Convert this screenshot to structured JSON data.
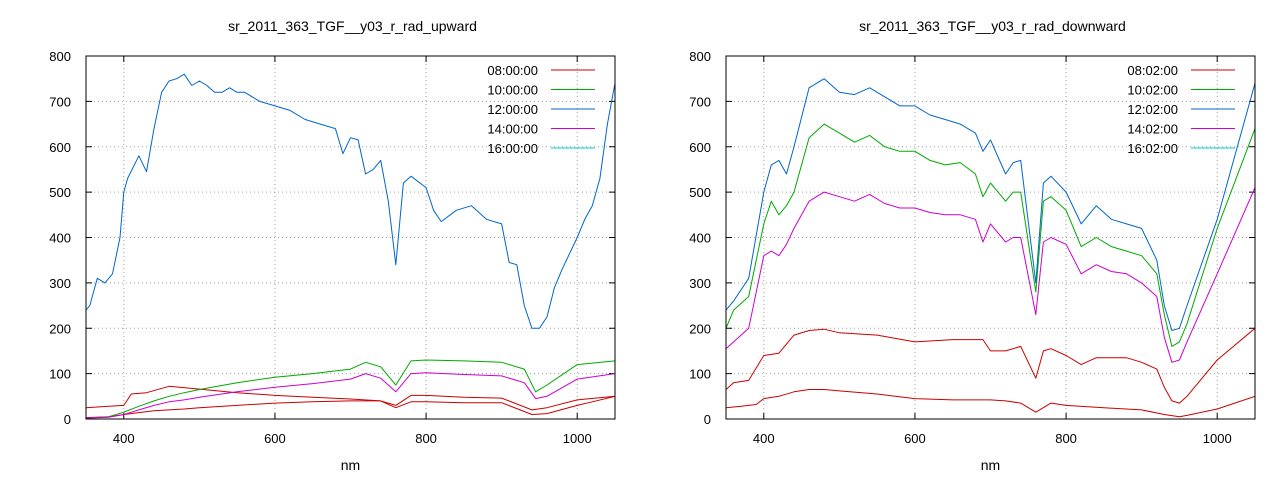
{
  "chart_data": [
    {
      "type": "line",
      "title": "sr_2011_363_TGF__y03_r_rad_upward",
      "xlabel": "nm",
      "ylabel": "",
      "xlim": [
        350,
        1050
      ],
      "ylim": [
        0,
        800
      ],
      "xticks": [
        400,
        600,
        800,
        1000
      ],
      "yticks": [
        0,
        100,
        200,
        300,
        400,
        500,
        600,
        700,
        800
      ],
      "grid": true,
      "legend_position": "top-right",
      "series": [
        {
          "name": "08:00:00",
          "color": "#cc0000",
          "x": [
            350,
            380,
            400,
            420,
            440,
            460,
            480,
            500,
            550,
            600,
            650,
            700,
            740,
            760,
            780,
            800,
            850,
            900,
            940,
            960,
            1000,
            1020,
            1050
          ],
          "y": [
            3,
            5,
            10,
            14,
            18,
            20,
            22,
            25,
            30,
            35,
            38,
            40,
            40,
            25,
            38,
            38,
            36,
            36,
            10,
            12,
            30,
            38,
            50
          ]
        },
        {
          "name": "08:00:00",
          "color": "#cc0000",
          "x": [
            350,
            380,
            400,
            410,
            430,
            460,
            500,
            550,
            600,
            650,
            700,
            740,
            760,
            780,
            800,
            850,
            900,
            940,
            960,
            1000,
            1050
          ],
          "y": [
            25,
            28,
            30,
            55,
            58,
            72,
            66,
            58,
            52,
            48,
            44,
            40,
            30,
            52,
            52,
            48,
            46,
            20,
            25,
            42,
            50
          ]
        },
        {
          "name": "10:00:00",
          "color": "#00aa00",
          "x": [
            350,
            380,
            400,
            420,
            440,
            460,
            480,
            500,
            550,
            600,
            650,
            700,
            720,
            740,
            760,
            780,
            800,
            850,
            900,
            930,
            945,
            960,
            1000,
            1050
          ],
          "y": [
            2,
            5,
            15,
            28,
            40,
            50,
            58,
            65,
            80,
            92,
            100,
            110,
            125,
            115,
            75,
            128,
            130,
            128,
            125,
            110,
            60,
            75,
            120,
            128
          ]
        },
        {
          "name": "12:00:00",
          "color": "#0066cc",
          "x": [
            350,
            355,
            365,
            375,
            385,
            395,
            400,
            405,
            420,
            430,
            440,
            450,
            460,
            470,
            480,
            490,
            500,
            510,
            520,
            530,
            540,
            550,
            560,
            580,
            600,
            620,
            640,
            660,
            680,
            690,
            700,
            710,
            720,
            730,
            740,
            750,
            760,
            770,
            780,
            800,
            810,
            820,
            840,
            860,
            880,
            900,
            910,
            920,
            930,
            940,
            950,
            960,
            970,
            980,
            1000,
            1010,
            1020,
            1030,
            1040,
            1050
          ],
          "y": [
            240,
            250,
            310,
            300,
            320,
            400,
            500,
            530,
            580,
            545,
            640,
            720,
            745,
            750,
            760,
            735,
            745,
            735,
            720,
            720,
            730,
            720,
            720,
            700,
            690,
            680,
            660,
            650,
            640,
            585,
            620,
            615,
            540,
            550,
            570,
            480,
            340,
            520,
            535,
            510,
            460,
            435,
            460,
            470,
            440,
            430,
            345,
            340,
            250,
            200,
            200,
            225,
            290,
            330,
            400,
            440,
            470,
            530,
            650,
            740
          ]
        },
        {
          "name": "14:00:00",
          "color": "#cc00cc",
          "x": [
            350,
            380,
            400,
            420,
            440,
            460,
            480,
            500,
            550,
            600,
            650,
            700,
            720,
            740,
            760,
            780,
            800,
            850,
            900,
            930,
            945,
            960,
            1000,
            1050
          ],
          "y": [
            2,
            4,
            10,
            20,
            30,
            38,
            42,
            48,
            60,
            70,
            78,
            88,
            100,
            90,
            60,
            100,
            102,
            98,
            95,
            80,
            45,
            50,
            88,
            100
          ]
        },
        {
          "name": "16:00:00",
          "color": "#00cccc",
          "x": [
            350,
            1050
          ],
          "y": [
            0,
            0
          ]
        }
      ]
    },
    {
      "type": "line",
      "title": "sr_2011_363_TGF__y03_r_rad_downward",
      "xlabel": "nm",
      "ylabel": "",
      "xlim": [
        350,
        1050
      ],
      "ylim": [
        0,
        800
      ],
      "xticks": [
        400,
        600,
        800,
        1000
      ],
      "yticks": [
        0,
        100,
        200,
        300,
        400,
        500,
        600,
        700,
        800
      ],
      "grid": true,
      "legend_position": "top-right",
      "series": [
        {
          "name": "08:02:00",
          "color": "#cc0000",
          "x": [
            350,
            370,
            390,
            400,
            420,
            440,
            460,
            480,
            500,
            550,
            600,
            650,
            700,
            720,
            740,
            760,
            780,
            800,
            850,
            900,
            930,
            950,
            960,
            1000,
            1050
          ],
          "y": [
            25,
            28,
            32,
            45,
            50,
            60,
            65,
            65,
            62,
            55,
            45,
            42,
            42,
            40,
            35,
            15,
            35,
            30,
            25,
            20,
            10,
            5,
            8,
            22,
            50
          ]
        },
        {
          "name": "08:02:00",
          "color": "#cc0000",
          "x": [
            350,
            360,
            380,
            400,
            420,
            440,
            460,
            480,
            500,
            550,
            600,
            650,
            690,
            700,
            720,
            740,
            760,
            770,
            780,
            800,
            820,
            840,
            880,
            900,
            920,
            930,
            940,
            950,
            960,
            1000,
            1050
          ],
          "y": [
            65,
            80,
            85,
            140,
            145,
            185,
            195,
            198,
            190,
            185,
            170,
            175,
            175,
            150,
            150,
            160,
            90,
            150,
            155,
            140,
            120,
            135,
            135,
            125,
            110,
            70,
            40,
            35,
            50,
            130,
            200
          ]
        },
        {
          "name": "10:02:00",
          "color": "#00aa00",
          "x": [
            350,
            360,
            380,
            400,
            410,
            420,
            430,
            440,
            460,
            480,
            500,
            520,
            540,
            560,
            580,
            600,
            620,
            640,
            660,
            680,
            690,
            700,
            720,
            730,
            740,
            760,
            770,
            780,
            800,
            820,
            840,
            860,
            880,
            900,
            920,
            930,
            940,
            950,
            960,
            1000,
            1050
          ],
          "y": [
            200,
            240,
            270,
            430,
            480,
            450,
            470,
            500,
            620,
            650,
            630,
            610,
            625,
            600,
            590,
            590,
            570,
            560,
            565,
            540,
            490,
            520,
            480,
            500,
            500,
            280,
            480,
            490,
            460,
            380,
            400,
            380,
            370,
            360,
            320,
            230,
            160,
            170,
            210,
            420,
            640
          ]
        },
        {
          "name": "12:02:00",
          "color": "#0066cc",
          "x": [
            350,
            360,
            380,
            400,
            410,
            420,
            430,
            440,
            460,
            480,
            500,
            520,
            540,
            560,
            580,
            600,
            620,
            640,
            660,
            680,
            690,
            700,
            720,
            730,
            740,
            760,
            770,
            780,
            800,
            820,
            840,
            860,
            880,
            900,
            920,
            930,
            940,
            950,
            960,
            1000,
            1050
          ],
          "y": [
            240,
            260,
            310,
            500,
            560,
            570,
            540,
            600,
            730,
            750,
            720,
            715,
            730,
            710,
            690,
            690,
            670,
            660,
            650,
            630,
            590,
            615,
            540,
            565,
            570,
            300,
            520,
            535,
            500,
            430,
            470,
            440,
            430,
            420,
            350,
            250,
            195,
            200,
            250,
            440,
            740
          ]
        },
        {
          "name": "14:02:00",
          "color": "#cc00cc",
          "x": [
            350,
            360,
            380,
            400,
            410,
            420,
            430,
            440,
            460,
            480,
            500,
            520,
            540,
            560,
            580,
            600,
            620,
            640,
            660,
            680,
            690,
            700,
            720,
            730,
            740,
            760,
            770,
            780,
            800,
            820,
            840,
            860,
            880,
            900,
            920,
            930,
            940,
            950,
            960,
            1000,
            1050
          ],
          "y": [
            155,
            170,
            200,
            360,
            370,
            360,
            385,
            420,
            480,
            500,
            490,
            480,
            495,
            475,
            465,
            465,
            455,
            450,
            450,
            440,
            390,
            430,
            390,
            400,
            400,
            230,
            390,
            400,
            385,
            320,
            340,
            325,
            320,
            300,
            270,
            180,
            125,
            130,
            170,
            320,
            510
          ]
        },
        {
          "name": "16:02:00",
          "color": "#00cccc",
          "x": [
            350,
            1050
          ],
          "y": [
            0,
            0
          ]
        }
      ]
    }
  ]
}
